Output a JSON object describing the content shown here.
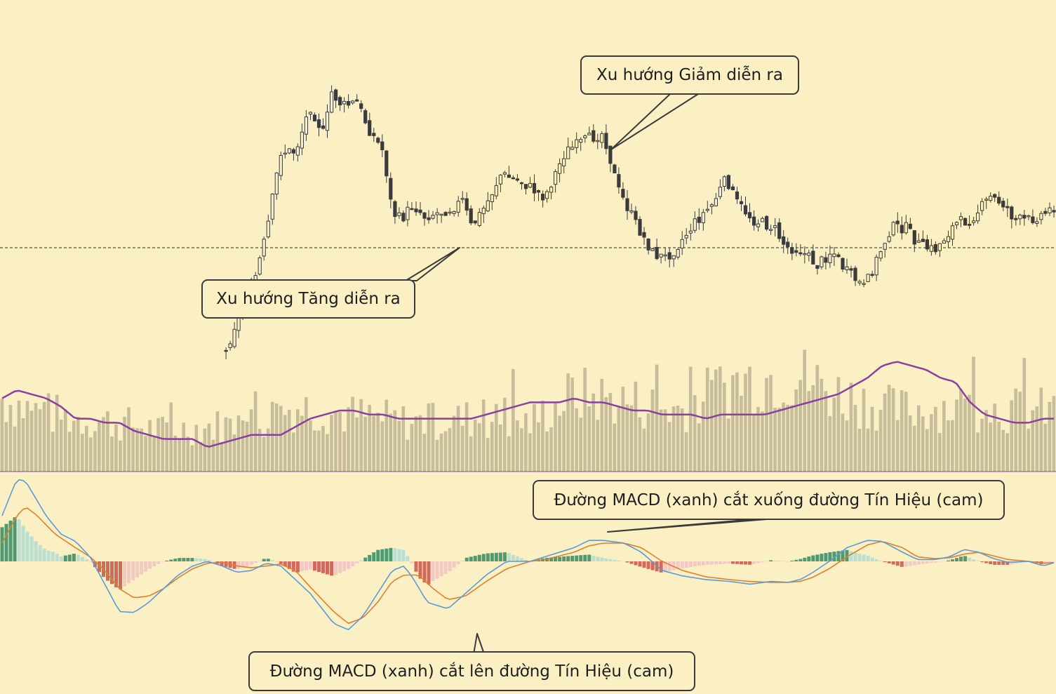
{
  "colors": {
    "background": "#fbf0c4",
    "candle": "#3b3b3b",
    "volume_bar": "#c8bd9a",
    "volume_ma": "#8a3fa3",
    "macd_line": "#5b9bd5",
    "signal_line": "#e0802c",
    "hist_pos_strong": "#4e9a72",
    "hist_pos_weak": "#b9e0d4",
    "hist_neg_strong": "#cf6a5c",
    "hist_neg_weak": "#f3c9c4",
    "callout_border": "#3a3a3a"
  },
  "annotations": {
    "uptrend": "Xu hướng Tăng diễn ra",
    "downtrend": "Xu hướng Giảm diễn ra",
    "macd_cross_down": "Đường MACD (xanh) cắt xuống đường Tín Hiệu (cam)",
    "macd_cross_up": "Đường MACD (xanh) cắt lên đường Tín Hiệu (cam)"
  },
  "chart_data": {
    "type": "candlestick-volume-macd",
    "bars": 250,
    "x_start_bar": 75,
    "price_anchors": [
      [
        75,
        96
      ],
      [
        80,
        84
      ],
      [
        84,
        80
      ],
      [
        90,
        62
      ],
      [
        95,
        40
      ],
      [
        100,
        40
      ],
      [
        105,
        28
      ],
      [
        110,
        36
      ],
      [
        112,
        24
      ],
      [
        116,
        28
      ],
      [
        121,
        27
      ],
      [
        125,
        34
      ],
      [
        130,
        40
      ],
      [
        133,
        56
      ],
      [
        136,
        58
      ],
      [
        140,
        54
      ],
      [
        144,
        57
      ],
      [
        149,
        56
      ],
      [
        153,
        55
      ],
      [
        157,
        53
      ],
      [
        160,
        60
      ],
      [
        165,
        54
      ],
      [
        170,
        46
      ],
      [
        177,
        48
      ],
      [
        185,
        52
      ],
      [
        192,
        40
      ],
      [
        199,
        37
      ],
      [
        205,
        35
      ],
      [
        210,
        50
      ],
      [
        216,
        59
      ],
      [
        222,
        67
      ],
      [
        226,
        68
      ],
      [
        229,
        66
      ],
      [
        233,
        62
      ],
      [
        237,
        58
      ],
      [
        242,
        54
      ],
      [
        247,
        47
      ],
      [
        250,
        53
      ],
      [
        256,
        58
      ],
      [
        263,
        60
      ],
      [
        267,
        65
      ],
      [
        272,
        66
      ],
      [
        278,
        70
      ],
      [
        283,
        66
      ],
      [
        287,
        71
      ],
      [
        294,
        76
      ],
      [
        299,
        67
      ],
      [
        303,
        60
      ],
      [
        308,
        60
      ],
      [
        313,
        65
      ],
      [
        318,
        66
      ],
      [
        325,
        59
      ],
      [
        330,
        58
      ],
      [
        337,
        52
      ],
      [
        342,
        54
      ],
      [
        345,
        58
      ],
      [
        350,
        58
      ],
      [
        356,
        56
      ],
      [
        361,
        53
      ],
      [
        365,
        58
      ]
    ],
    "volume_anchors": [
      [
        0,
        18
      ],
      [
        10,
        15
      ],
      [
        25,
        13
      ],
      [
        40,
        12
      ],
      [
        55,
        10
      ],
      [
        70,
        11
      ],
      [
        85,
        12
      ],
      [
        100,
        16
      ],
      [
        118,
        14
      ],
      [
        140,
        12
      ],
      [
        160,
        13
      ],
      [
        180,
        12
      ],
      [
        195,
        19
      ],
      [
        215,
        17
      ],
      [
        230,
        15
      ],
      [
        250,
        22
      ],
      [
        270,
        24
      ],
      [
        285,
        19
      ],
      [
        305,
        15
      ],
      [
        325,
        16
      ],
      [
        345,
        15
      ],
      [
        360,
        15
      ]
    ],
    "volume_ma_anchors": [
      [
        0,
        18
      ],
      [
        5,
        20
      ],
      [
        10,
        19
      ],
      [
        15,
        18
      ],
      [
        20,
        16
      ],
      [
        25,
        13
      ],
      [
        30,
        13
      ],
      [
        35,
        12
      ],
      [
        40,
        12
      ],
      [
        45,
        10
      ],
      [
        50,
        9
      ],
      [
        55,
        8
      ],
      [
        60,
        8
      ],
      [
        65,
        8
      ],
      [
        70,
        6
      ],
      [
        75,
        7
      ],
      [
        80,
        8
      ],
      [
        85,
        9
      ],
      [
        90,
        9
      ],
      [
        95,
        9
      ],
      [
        100,
        11
      ],
      [
        105,
        13
      ],
      [
        110,
        14
      ],
      [
        115,
        15
      ],
      [
        120,
        15
      ],
      [
        125,
        14
      ],
      [
        130,
        14
      ],
      [
        135,
        13
      ],
      [
        140,
        13
      ],
      [
        145,
        13
      ],
      [
        150,
        13
      ],
      [
        155,
        13
      ],
      [
        160,
        13
      ],
      [
        165,
        14
      ],
      [
        170,
        15
      ],
      [
        175,
        16
      ],
      [
        180,
        17
      ],
      [
        185,
        17
      ],
      [
        190,
        17
      ],
      [
        195,
        18
      ],
      [
        200,
        17
      ],
      [
        205,
        17
      ],
      [
        210,
        16
      ],
      [
        215,
        15
      ],
      [
        220,
        15
      ],
      [
        225,
        14
      ],
      [
        230,
        14
      ],
      [
        235,
        14
      ],
      [
        240,
        13
      ],
      [
        245,
        14
      ],
      [
        250,
        14
      ],
      [
        255,
        14
      ],
      [
        260,
        14
      ],
      [
        265,
        15
      ],
      [
        270,
        16
      ],
      [
        275,
        17
      ],
      [
        280,
        18
      ],
      [
        285,
        19
      ],
      [
        290,
        21
      ],
      [
        295,
        23
      ],
      [
        300,
        26
      ],
      [
        305,
        27
      ],
      [
        310,
        26
      ],
      [
        315,
        25
      ],
      [
        320,
        23
      ],
      [
        325,
        22
      ],
      [
        330,
        17
      ],
      [
        335,
        14
      ],
      [
        340,
        13
      ],
      [
        345,
        12
      ],
      [
        350,
        12
      ],
      [
        355,
        13
      ],
      [
        360,
        13
      ]
    ],
    "macd_ylim": [
      -1,
      1
    ],
    "macd_anchors": [
      [
        0,
        0.5
      ],
      [
        5,
        0.9
      ],
      [
        8,
        0.88
      ],
      [
        15,
        0.5
      ],
      [
        20,
        0.3
      ],
      [
        25,
        0.22
      ],
      [
        30,
        0.05
      ],
      [
        35,
        -0.25
      ],
      [
        40,
        -0.55
      ],
      [
        45,
        -0.56
      ],
      [
        50,
        -0.45
      ],
      [
        55,
        -0.3
      ],
      [
        60,
        -0.15
      ],
      [
        65,
        -0.05
      ],
      [
        70,
        0.0
      ],
      [
        75,
        -0.05
      ],
      [
        80,
        -0.12
      ],
      [
        85,
        -0.1
      ],
      [
        90,
        -0.02
      ],
      [
        95,
        -0.05
      ],
      [
        105,
        -0.35
      ],
      [
        113,
        -0.68
      ],
      [
        118,
        -0.75
      ],
      [
        123,
        -0.6
      ],
      [
        128,
        -0.35
      ],
      [
        133,
        -0.1
      ],
      [
        137,
        -0.05
      ],
      [
        140,
        -0.18
      ],
      [
        145,
        -0.45
      ],
      [
        152,
        -0.52
      ],
      [
        158,
        -0.35
      ],
      [
        165,
        -0.15
      ],
      [
        172,
        0.0
      ],
      [
        180,
        0.0
      ],
      [
        185,
        0.05
      ],
      [
        195,
        0.15
      ],
      [
        200,
        0.23
      ],
      [
        205,
        0.23
      ],
      [
        212,
        0.2
      ],
      [
        218,
        0.1
      ],
      [
        225,
        -0.1
      ],
      [
        232,
        -0.16
      ],
      [
        240,
        -0.2
      ],
      [
        248,
        -0.22
      ],
      [
        255,
        -0.25
      ],
      [
        262,
        -0.22
      ],
      [
        268,
        -0.23
      ],
      [
        272,
        -0.2
      ],
      [
        276,
        -0.13
      ],
      [
        282,
        0.0
      ],
      [
        288,
        0.15
      ],
      [
        295,
        0.23
      ],
      [
        300,
        0.22
      ],
      [
        307,
        0.1
      ],
      [
        312,
        0.02
      ],
      [
        318,
        0.02
      ],
      [
        323,
        0.05
      ],
      [
        328,
        0.13
      ],
      [
        333,
        0.1
      ],
      [
        338,
        0.03
      ],
      [
        343,
        -0.01
      ],
      [
        350,
        0.0
      ],
      [
        355,
        -0.05
      ],
      [
        360,
        0.0
      ]
    ],
    "signal_anchors": [
      [
        0,
        0.2
      ],
      [
        5,
        0.5
      ],
      [
        8,
        0.6
      ],
      [
        12,
        0.5
      ],
      [
        18,
        0.3
      ],
      [
        25,
        0.15
      ],
      [
        30,
        0.05
      ],
      [
        35,
        -0.1
      ],
      [
        40,
        -0.3
      ],
      [
        45,
        -0.4
      ],
      [
        50,
        -0.38
      ],
      [
        55,
        -0.3
      ],
      [
        60,
        -0.18
      ],
      [
        65,
        -0.08
      ],
      [
        70,
        -0.02
      ],
      [
        75,
        -0.01
      ],
      [
        80,
        -0.05
      ],
      [
        85,
        -0.07
      ],
      [
        90,
        -0.05
      ],
      [
        95,
        -0.03
      ],
      [
        100,
        -0.1
      ],
      [
        105,
        -0.28
      ],
      [
        113,
        -0.55
      ],
      [
        118,
        -0.68
      ],
      [
        123,
        -0.62
      ],
      [
        128,
        -0.45
      ],
      [
        133,
        -0.22
      ],
      [
        137,
        -0.15
      ],
      [
        142,
        -0.15
      ],
      [
        147,
        -0.3
      ],
      [
        152,
        -0.42
      ],
      [
        158,
        -0.38
      ],
      [
        165,
        -0.22
      ],
      [
        172,
        -0.08
      ],
      [
        180,
        0.0
      ],
      [
        185,
        0.02
      ],
      [
        195,
        0.1
      ],
      [
        200,
        0.17
      ],
      [
        205,
        0.2
      ],
      [
        212,
        0.2
      ],
      [
        218,
        0.15
      ],
      [
        225,
        0.0
      ],
      [
        232,
        -0.1
      ],
      [
        240,
        -0.17
      ],
      [
        248,
        -0.2
      ],
      [
        255,
        -0.22
      ],
      [
        262,
        -0.23
      ],
      [
        268,
        -0.23
      ],
      [
        272,
        -0.22
      ],
      [
        276,
        -0.18
      ],
      [
        282,
        -0.08
      ],
      [
        288,
        0.05
      ],
      [
        295,
        0.18
      ],
      [
        300,
        0.22
      ],
      [
        307,
        0.15
      ],
      [
        312,
        0.05
      ],
      [
        318,
        0.03
      ],
      [
        323,
        0.04
      ],
      [
        328,
        0.08
      ],
      [
        333,
        0.1
      ],
      [
        338,
        0.06
      ],
      [
        343,
        0.02
      ],
      [
        350,
        0.0
      ],
      [
        355,
        -0.02
      ],
      [
        360,
        -0.01
      ]
    ]
  }
}
